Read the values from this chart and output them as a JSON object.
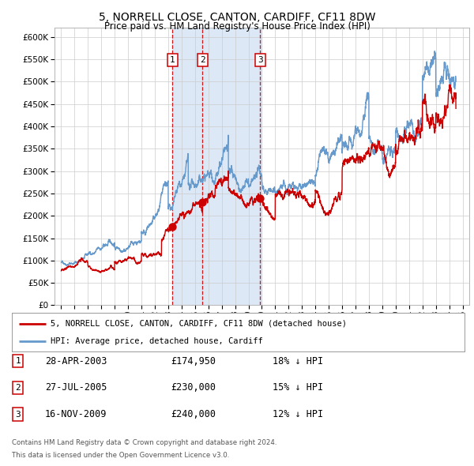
{
  "title": "5, NORRELL CLOSE, CANTON, CARDIFF, CF11 8DW",
  "subtitle": "Price paid vs. HM Land Registry's House Price Index (HPI)",
  "legend_line1": "5, NORRELL CLOSE, CANTON, CARDIFF, CF11 8DW (detached house)",
  "legend_line2": "HPI: Average price, detached house, Cardiff",
  "footer1": "Contains HM Land Registry data © Crown copyright and database right 2024.",
  "footer2": "This data is licensed under the Open Government Licence v3.0.",
  "transactions": [
    {
      "num": 1,
      "date": "28-APR-2003",
      "price": 174950,
      "pct": "18%",
      "direction": "↓"
    },
    {
      "num": 2,
      "date": "27-JUL-2005",
      "price": 230000,
      "pct": "15%",
      "direction": "↓"
    },
    {
      "num": 3,
      "date": "16-NOV-2009",
      "price": 240000,
      "pct": "12%",
      "direction": "↓"
    }
  ],
  "transaction_dates_decimal": [
    2003.32,
    2005.57,
    2009.88
  ],
  "transaction_prices": [
    174950,
    230000,
    240000
  ],
  "shade_regions": [
    [
      2003.32,
      2010.0
    ]
  ],
  "hpi_color": "#6699cc",
  "price_color": "#cc0000",
  "plot_background": "#ffffff",
  "grid_color": "#cccccc",
  "shade_color": "#dce8f5",
  "ylim": [
    0,
    620000
  ],
  "yticks": [
    0,
    50000,
    100000,
    150000,
    200000,
    250000,
    300000,
    350000,
    400000,
    450000,
    500000,
    550000,
    600000
  ],
  "xlim_start": 1994.5,
  "xlim_end": 2025.5,
  "xtick_years": [
    1995,
    1996,
    1997,
    1998,
    1999,
    2000,
    2001,
    2002,
    2003,
    2004,
    2005,
    2006,
    2007,
    2008,
    2009,
    2010,
    2011,
    2012,
    2013,
    2014,
    2015,
    2016,
    2017,
    2018,
    2019,
    2020,
    2021,
    2022,
    2023,
    2024,
    2025
  ]
}
